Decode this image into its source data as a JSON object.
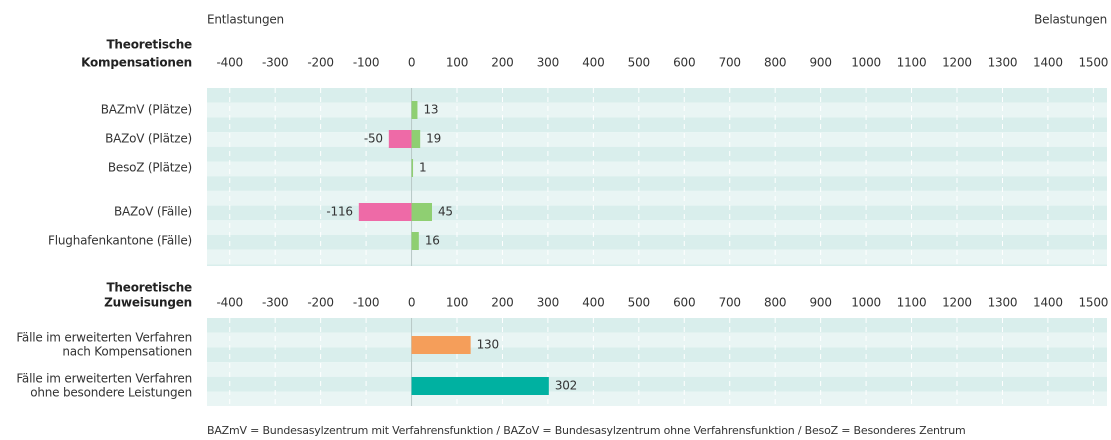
{
  "left_label": "Entlastungen",
  "right_label": "Belastungen",
  "footnote": "BAZmV = Bundesasylzentrum mit Verfahrensfunktion / BAZoV = Bundesasylzentrum ohne Verfahrensfunktion / BesoZ = Besonderes Zentrum",
  "chart_data": [
    {
      "type": "bar",
      "orientation": "horizontal",
      "title": [
        "Theoretische",
        "Kompensationen"
      ],
      "categories": [
        [
          "BAZmV (Plätze)"
        ],
        [
          "BAZoV (Plätze)"
        ],
        [
          "BesoZ (Plätze)"
        ],
        [
          "BAZoV (Fälle)"
        ],
        [
          "Flughafenkantone (Fälle)"
        ]
      ],
      "series": [
        {
          "color": "#ee6aa7",
          "values": [
            null,
            -50,
            null,
            -116,
            null
          ]
        },
        {
          "color": "#8fcf72",
          "values": [
            13,
            19,
            1,
            45,
            16
          ]
        }
      ],
      "xlim": [
        -450,
        1530
      ],
      "xticks": [
        -400,
        -300,
        -200,
        -100,
        0,
        100,
        200,
        300,
        400,
        500,
        600,
        700,
        800,
        900,
        1000,
        1100,
        1200,
        1300,
        1400,
        1500
      ],
      "grid": true
    },
    {
      "type": "bar",
      "orientation": "horizontal",
      "title": [
        "Theoretische",
        "Zuweisungen"
      ],
      "categories": [
        [
          "Fälle im erweiterten Verfahren",
          "nach Kompensationen"
        ],
        [
          "Fälle im erweiterten Verfahren",
          "ohne besondere Leistungen"
        ]
      ],
      "series": [
        {
          "colors": [
            "#f59e5a",
            "#00b1a1"
          ],
          "values": [
            130,
            302
          ]
        }
      ],
      "xlim": [
        -450,
        1530
      ],
      "xticks": [
        -400,
        -300,
        -200,
        -100,
        0,
        100,
        200,
        300,
        400,
        500,
        600,
        700,
        800,
        900,
        1000,
        1100,
        1200,
        1300,
        1400,
        1500
      ],
      "grid": true
    }
  ]
}
